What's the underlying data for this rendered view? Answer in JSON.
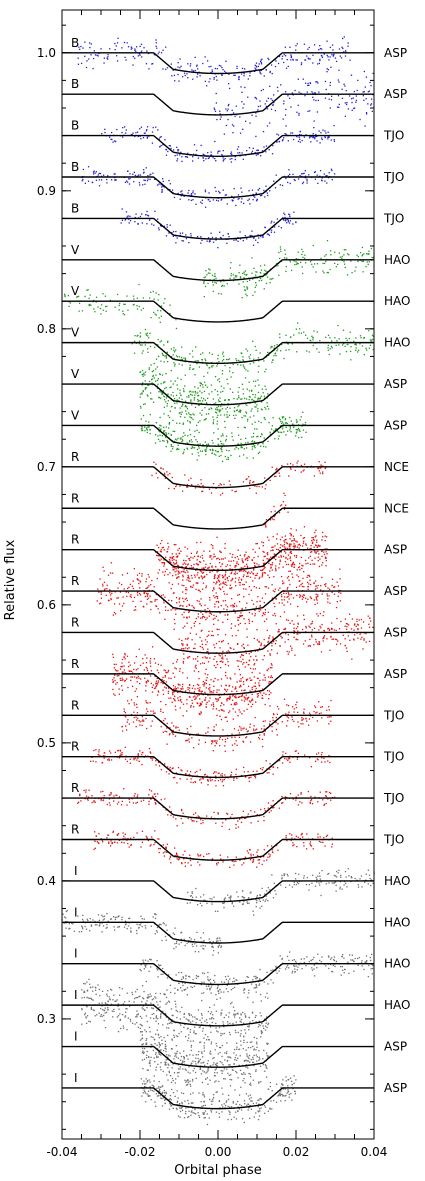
{
  "chart_data": {
    "type": "scatter",
    "xlabel": "Orbital phase",
    "ylabel": "Relative flux",
    "xlim": [
      -0.04,
      0.04
    ],
    "ylim": [
      0.213,
      1.031
    ],
    "x_ticks": [
      "-0.04",
      "-0.02",
      "0.00",
      "0.02",
      "0.04"
    ],
    "x_tick_values": [
      -0.04,
      -0.02,
      0.0,
      0.02,
      0.04
    ],
    "y_ticks": [
      "0.3",
      "0.4",
      "0.5",
      "0.6",
      "0.7",
      "0.8",
      "0.9",
      "1.0"
    ],
    "y_tick_values": [
      0.3,
      0.4,
      0.5,
      0.6,
      0.7,
      0.8,
      0.9,
      1.0
    ],
    "grid": false,
    "model": {
      "depth": 0.015,
      "ingress_start": 0.0165,
      "full_depth_edge": 0.0115
    },
    "filter_colors": {
      "B": "#1f1fd8",
      "V": "#1f9a1f",
      "R": "#e01414",
      "I": "#707070"
    },
    "series": [
      {
        "band": "B",
        "observatory": "ASP",
        "baseline": 1.0,
        "x_range": [
          -0.036,
          0.034
        ],
        "scatter": 0.005,
        "n": 280
      },
      {
        "band": "B",
        "observatory": "ASP",
        "baseline": 0.97,
        "x_range": [
          -0.001,
          0.04
        ],
        "scatter": 0.009,
        "n": 190
      },
      {
        "band": "B",
        "observatory": "TJO",
        "baseline": 0.94,
        "x_range": [
          -0.03,
          0.03
        ],
        "scatter": 0.003,
        "n": 220
      },
      {
        "band": "B",
        "observatory": "TJO",
        "baseline": 0.91,
        "x_range": [
          -0.035,
          0.03
        ],
        "scatter": 0.003,
        "n": 240
      },
      {
        "band": "B",
        "observatory": "TJO",
        "baseline": 0.88,
        "x_range": [
          -0.025,
          0.02
        ],
        "scatter": 0.003,
        "n": 160
      },
      {
        "band": "V",
        "observatory": "HAO",
        "baseline": 0.85,
        "x_range": [
          -0.004,
          0.04
        ],
        "scatter": 0.005,
        "n": 230
      },
      {
        "band": "V",
        "observatory": "HAO",
        "baseline": 0.82,
        "x_range": [
          -0.04,
          -0.01
        ],
        "scatter": 0.005,
        "n": 90
      },
      {
        "band": "V",
        "observatory": "HAO",
        "baseline": 0.79,
        "x_range": [
          -0.022,
          0.04
        ],
        "scatter": 0.005,
        "n": 300
      },
      {
        "band": "V",
        "observatory": "ASP",
        "baseline": 0.76,
        "x_range": [
          -0.02,
          0.013
        ],
        "scatter": 0.009,
        "n": 420
      },
      {
        "band": "V",
        "observatory": "ASP",
        "baseline": 0.73,
        "x_range": [
          -0.02,
          0.023
        ],
        "scatter": 0.005,
        "n": 320
      },
      {
        "band": "R",
        "observatory": "NCE",
        "baseline": 0.7,
        "x_range": [
          -0.017,
          0.028
        ],
        "scatter": 0.003,
        "n": 130
      },
      {
        "band": "R",
        "observatory": "NCE",
        "baseline": 0.67,
        "x_range": [
          0.012,
          0.018
        ],
        "scatter": 0.004,
        "n": 25
      },
      {
        "band": "R",
        "observatory": "ASP",
        "baseline": 0.64,
        "x_range": [
          -0.016,
          0.028
        ],
        "scatter": 0.008,
        "n": 700
      },
      {
        "band": "R",
        "observatory": "ASP",
        "baseline": 0.61,
        "x_range": [
          -0.031,
          0.032
        ],
        "scatter": 0.007,
        "n": 480
      },
      {
        "band": "R",
        "observatory": "ASP",
        "baseline": 0.58,
        "x_range": [
          -0.01,
          0.04
        ],
        "scatter": 0.008,
        "n": 380
      },
      {
        "band": "R",
        "observatory": "ASP",
        "baseline": 0.55,
        "x_range": [
          -0.027,
          0.014
        ],
        "scatter": 0.008,
        "n": 520
      },
      {
        "band": "R",
        "observatory": "TJO",
        "baseline": 0.52,
        "x_range": [
          -0.025,
          0.029
        ],
        "scatter": 0.005,
        "n": 260
      },
      {
        "band": "R",
        "observatory": "TJO",
        "baseline": 0.49,
        "x_range": [
          -0.033,
          0.029
        ],
        "scatter": 0.003,
        "n": 230
      },
      {
        "band": "R",
        "observatory": "TJO",
        "baseline": 0.46,
        "x_range": [
          -0.036,
          0.03
        ],
        "scatter": 0.003,
        "n": 220
      },
      {
        "band": "R",
        "observatory": "TJO",
        "baseline": 0.43,
        "x_range": [
          -0.033,
          0.03
        ],
        "scatter": 0.003,
        "n": 230
      },
      {
        "band": "I",
        "observatory": "HAO",
        "baseline": 0.4,
        "x_range": [
          -0.008,
          0.04
        ],
        "scatter": 0.004,
        "n": 200
      },
      {
        "band": "I",
        "observatory": "HAO",
        "baseline": 0.37,
        "x_range": [
          -0.04,
          0.001
        ],
        "scatter": 0.004,
        "n": 200
      },
      {
        "band": "I",
        "observatory": "HAO",
        "baseline": 0.34,
        "x_range": [
          -0.02,
          0.04
        ],
        "scatter": 0.004,
        "n": 300
      },
      {
        "band": "I",
        "observatory": "HAO",
        "baseline": 0.31,
        "x_range": [
          -0.035,
          0.013
        ],
        "scatter": 0.009,
        "n": 450
      },
      {
        "band": "I",
        "observatory": "ASP",
        "baseline": 0.28,
        "x_range": [
          -0.02,
          0.013
        ],
        "scatter": 0.009,
        "n": 420
      },
      {
        "band": "I",
        "observatory": "ASP",
        "baseline": 0.25,
        "x_range": [
          -0.02,
          0.02
        ],
        "scatter": 0.005,
        "n": 320
      }
    ]
  }
}
